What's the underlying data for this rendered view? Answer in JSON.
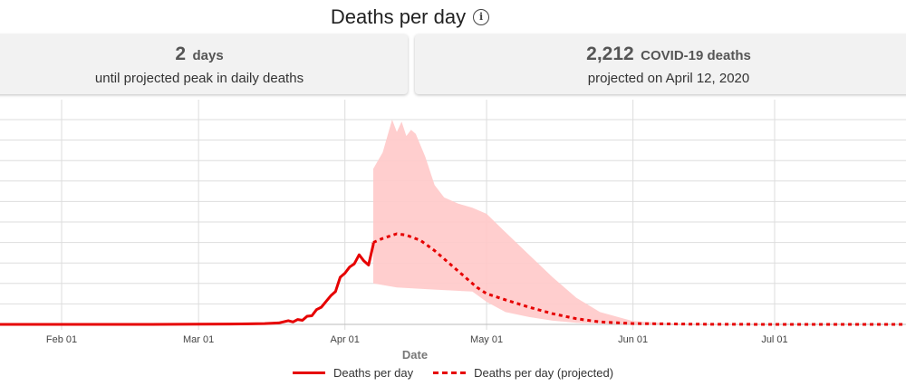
{
  "header": {
    "title": "Deaths per day",
    "info_icon": "info-circle-icon"
  },
  "stats": {
    "peak": {
      "value": "2",
      "unit": "days",
      "caption": "until projected peak in daily deaths"
    },
    "deaths": {
      "value": "2,212",
      "unit": "COVID-19 deaths",
      "caption": "projected on April 12, 2020"
    }
  },
  "colors": {
    "line": "#e60000",
    "band": "#ffc9c9",
    "grid": "#dddddd"
  },
  "chart_data": {
    "type": "line",
    "xlabel": "Date",
    "ylabel": "",
    "ytick_count": 11,
    "x_ticks": [
      "Feb 01",
      "Mar 01",
      "Apr 01",
      "May 01",
      "Jun 01",
      "Jul 01"
    ],
    "x_range": [
      "2020-01-10",
      "2020-08-01"
    ],
    "y_range": [
      0,
      5000
    ],
    "grid": true,
    "legend_position": "bottom",
    "legend": [
      {
        "label": "Deaths per day",
        "style": "solid"
      },
      {
        "label": "Deaths per day (projected)",
        "style": "dashed"
      }
    ],
    "series": [
      {
        "name": "Deaths per day",
        "style": "solid",
        "points": [
          [
            "2020-01-10",
            0
          ],
          [
            "2020-02-01",
            0
          ],
          [
            "2020-02-20",
            0
          ],
          [
            "2020-03-01",
            5
          ],
          [
            "2020-03-10",
            10
          ],
          [
            "2020-03-15",
            20
          ],
          [
            "2020-03-18",
            35
          ],
          [
            "2020-03-20",
            90
          ],
          [
            "2020-03-21",
            60
          ],
          [
            "2020-03-22",
            120
          ],
          [
            "2020-03-23",
            100
          ],
          [
            "2020-03-24",
            200
          ],
          [
            "2020-03-25",
            210
          ],
          [
            "2020-03-26",
            360
          ],
          [
            "2020-03-27",
            420
          ],
          [
            "2020-03-28",
            560
          ],
          [
            "2020-03-29",
            700
          ],
          [
            "2020-03-30",
            800
          ],
          [
            "2020-03-31",
            1150
          ],
          [
            "2020-04-01",
            1250
          ],
          [
            "2020-04-02",
            1400
          ],
          [
            "2020-04-03",
            1480
          ],
          [
            "2020-04-04",
            1700
          ],
          [
            "2020-04-05",
            1550
          ],
          [
            "2020-04-06",
            1450
          ],
          [
            "2020-04-07",
            1950
          ],
          [
            "2020-04-07",
            2000
          ]
        ]
      },
      {
        "name": "Deaths per day (projected)",
        "style": "dashed",
        "points": [
          [
            "2020-04-07",
            2000
          ],
          [
            "2020-04-09",
            2100
          ],
          [
            "2020-04-12",
            2212
          ],
          [
            "2020-04-14",
            2180
          ],
          [
            "2020-04-17",
            2050
          ],
          [
            "2020-04-20",
            1800
          ],
          [
            "2020-04-23",
            1500
          ],
          [
            "2020-04-26",
            1200
          ],
          [
            "2020-04-29",
            900
          ],
          [
            "2020-05-01",
            750
          ],
          [
            "2020-05-05",
            600
          ],
          [
            "2020-05-10",
            420
          ],
          [
            "2020-05-15",
            260
          ],
          [
            "2020-05-20",
            140
          ],
          [
            "2020-05-25",
            60
          ],
          [
            "2020-06-01",
            20
          ],
          [
            "2020-06-15",
            5
          ],
          [
            "2020-07-01",
            0
          ],
          [
            "2020-08-01",
            0
          ]
        ]
      }
    ],
    "uncertainty_band": {
      "upper": [
        [
          "2020-04-07",
          3800
        ],
        [
          "2020-04-09",
          4200
        ],
        [
          "2020-04-11",
          5000
        ],
        [
          "2020-04-12",
          4700
        ],
        [
          "2020-04-13",
          4950
        ],
        [
          "2020-04-14",
          4600
        ],
        [
          "2020-04-15",
          4750
        ],
        [
          "2020-04-16",
          4650
        ],
        [
          "2020-04-18",
          4100
        ],
        [
          "2020-04-20",
          3400
        ],
        [
          "2020-04-22",
          3100
        ],
        [
          "2020-04-25",
          2950
        ],
        [
          "2020-04-28",
          2850
        ],
        [
          "2020-05-01",
          2700
        ],
        [
          "2020-05-05",
          2250
        ],
        [
          "2020-05-10",
          1700
        ],
        [
          "2020-05-15",
          1150
        ],
        [
          "2020-05-20",
          650
        ],
        [
          "2020-05-25",
          300
        ],
        [
          "2020-06-01",
          80
        ],
        [
          "2020-06-10",
          20
        ],
        [
          "2020-07-01",
          0
        ]
      ],
      "lower": [
        [
          "2020-04-07",
          1000
        ],
        [
          "2020-04-12",
          900
        ],
        [
          "2020-04-20",
          850
        ],
        [
          "2020-04-28",
          800
        ],
        [
          "2020-05-01",
          550
        ],
        [
          "2020-05-05",
          300
        ],
        [
          "2020-05-10",
          180
        ],
        [
          "2020-05-15",
          90
        ],
        [
          "2020-05-20",
          40
        ],
        [
          "2020-06-01",
          5
        ],
        [
          "2020-07-01",
          0
        ]
      ]
    }
  }
}
